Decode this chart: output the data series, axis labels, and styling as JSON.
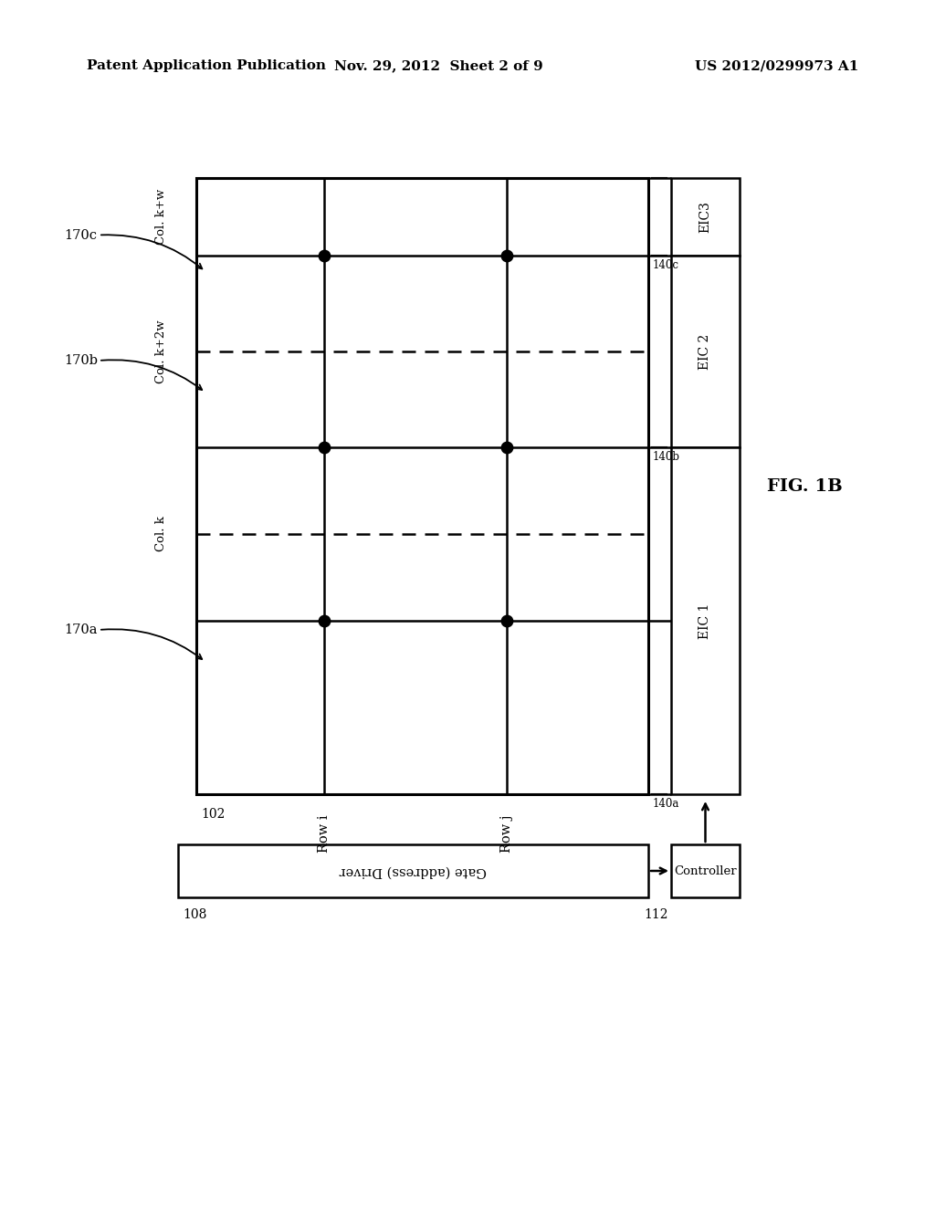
{
  "bg_color": "#ffffff",
  "header_left": "Patent Application Publication",
  "header_mid": "Nov. 29, 2012  Sheet 2 of 9",
  "header_right": "US 2012/0299973 A1",
  "fig_label": "FIG. 1B",
  "grid_label": "102",
  "gate_driver_label": "Gate (address) Driver",
  "controller_label": "Controller",
  "eic_labels": [
    "EIC3",
    "EIC 2",
    "EIC 1"
  ],
  "eic_boundary_labels": [
    "140a",
    "140b",
    "140c"
  ],
  "row_labels": [
    "Row i",
    "Row j"
  ],
  "col_solid_labels": [
    "Col. k+w",
    "Col. k+2w",
    "Col. k"
  ],
  "region_labels": [
    "170c",
    "170b",
    "170a"
  ],
  "gate_label": "108",
  "ctrl_label": "112"
}
